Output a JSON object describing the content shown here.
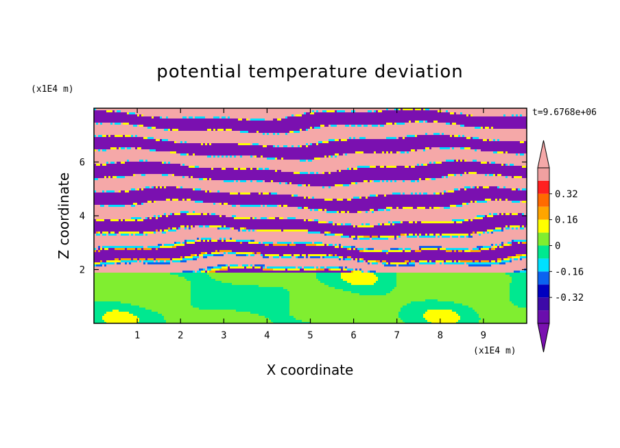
{
  "chart_data": {
    "type": "heatmap",
    "title": "potential temperature deviation",
    "xlabel": "X coordinate",
    "ylabel": "Z coordinate",
    "x_unit": "(x1E4 m)",
    "y_unit": "(x1E4 m)",
    "time_label": "t=9.6768e+06",
    "xlim": [
      0,
      10
    ],
    "ylim": [
      0,
      8
    ],
    "x_ticks": [
      1,
      2,
      3,
      4,
      5,
      6,
      7,
      8,
      9
    ],
    "y_ticks": [
      2,
      4,
      6
    ],
    "colorbar": {
      "levels": [
        -0.48,
        -0.4,
        -0.32,
        -0.24,
        -0.16,
        -0.08,
        0,
        0.08,
        0.16,
        0.24,
        0.32,
        0.4,
        0.48
      ],
      "colors": [
        "#6a0dad",
        "#3d0aa8",
        "#0000c0",
        "#0b62f0",
        "#00e0ff",
        "#00e890",
        "#80ee30",
        "#ffff00",
        "#ffa500",
        "#ff6a00",
        "#ff2020",
        "#f0a0a0"
      ],
      "under_color": "#7a10b0",
      "over_color": "#f5a8a8",
      "tick_labels": [
        "0.32",
        "0.16",
        "0",
        "-0.16",
        "-0.32"
      ],
      "tick_values": [
        0.32,
        0.16,
        0,
        -0.16,
        -0.32
      ]
    },
    "field_bands": {
      "lower_colors": [
        "#80ee30",
        "#00e890"
      ],
      "upper_colors": [
        "#f5a8a8",
        "#7a10b0"
      ],
      "transition_colors": [
        "#ff2020",
        "#ffa500",
        "#ffff00",
        "#00e0ff",
        "#0b62f0",
        "#0000c0"
      ]
    }
  }
}
